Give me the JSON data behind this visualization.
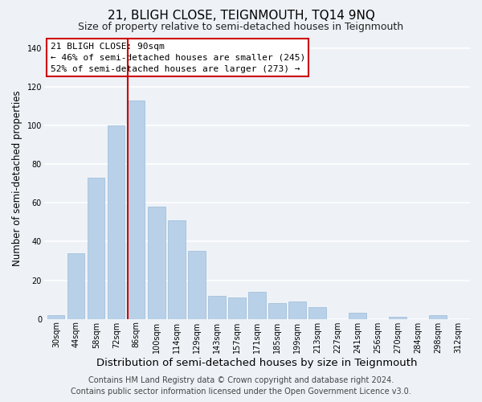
{
  "title": "21, BLIGH CLOSE, TEIGNMOUTH, TQ14 9NQ",
  "subtitle": "Size of property relative to semi-detached houses in Teignmouth",
  "xlabel": "Distribution of semi-detached houses by size in Teignmouth",
  "ylabel": "Number of semi-detached properties",
  "categories": [
    "30sqm",
    "44sqm",
    "58sqm",
    "72sqm",
    "86sqm",
    "100sqm",
    "114sqm",
    "129sqm",
    "143sqm",
    "157sqm",
    "171sqm",
    "185sqm",
    "199sqm",
    "213sqm",
    "227sqm",
    "241sqm",
    "256sqm",
    "270sqm",
    "284sqm",
    "298sqm",
    "312sqm"
  ],
  "values": [
    2,
    34,
    73,
    100,
    113,
    58,
    51,
    35,
    12,
    11,
    14,
    8,
    9,
    6,
    0,
    3,
    0,
    1,
    0,
    2,
    0
  ],
  "bar_color": "#b8d0e8",
  "bar_edge_color": "#9bbbd8",
  "highlight_bar_index": 4,
  "highlight_line_color": "#cc0000",
  "ylim": [
    0,
    145
  ],
  "yticks": [
    0,
    20,
    40,
    60,
    80,
    100,
    120,
    140
  ],
  "annotation_title": "21 BLIGH CLOSE: 90sqm",
  "annotation_line1": "← 46% of semi-detached houses are smaller (245)",
  "annotation_line2": "52% of semi-detached houses are larger (273) →",
  "annotation_box_facecolor": "#ffffff",
  "annotation_box_edgecolor": "#cc0000",
  "footer_line1": "Contains HM Land Registry data © Crown copyright and database right 2024.",
  "footer_line2": "Contains public sector information licensed under the Open Government Licence v3.0.",
  "background_color": "#eef2f7",
  "grid_color": "#ffffff",
  "title_fontsize": 11,
  "subtitle_fontsize": 9,
  "xlabel_fontsize": 9.5,
  "ylabel_fontsize": 8.5,
  "tick_fontsize": 7,
  "footer_fontsize": 7,
  "annotation_fontsize": 8
}
